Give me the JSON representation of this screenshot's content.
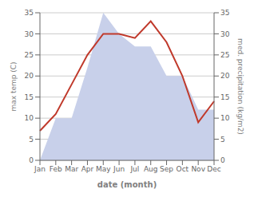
{
  "chart_data": {
    "type": "line",
    "xlabel": "date (month)",
    "ylabel": "max temp (C)",
    "y2label": "med. precipitation (kg/m2)",
    "categories": [
      "Jan",
      "Feb",
      "Mar",
      "Apr",
      "May",
      "Jun",
      "Jul",
      "Aug",
      "Sep",
      "Oct",
      "Nov",
      "Dec"
    ],
    "series": [
      {
        "type": "area",
        "color": "#c8d0ea",
        "axis": "y2",
        "values": [
          0,
          10,
          10,
          22,
          35,
          30,
          27,
          27,
          20,
          20,
          12,
          12
        ]
      },
      {
        "type": "line",
        "color": "#c0392b",
        "axis": "y",
        "values": [
          7,
          11,
          18,
          25,
          30,
          30,
          29,
          33,
          28,
          20,
          9,
          14
        ]
      }
    ],
    "ylim": [
      0,
      35
    ],
    "yticks": [
      0,
      5,
      10,
      15,
      20,
      25,
      30,
      35
    ],
    "y2lim": [
      0,
      35
    ],
    "y2ticks": [
      0,
      5,
      10,
      15,
      20,
      25,
      30,
      35
    ],
    "grid": true
  }
}
